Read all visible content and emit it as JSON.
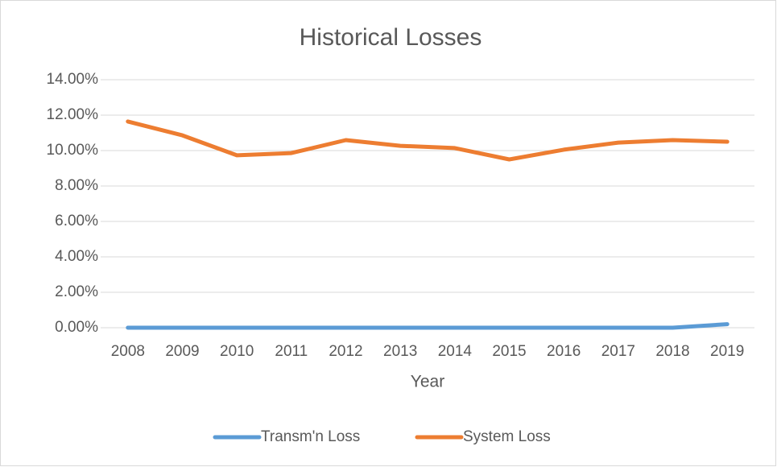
{
  "chart_data": {
    "type": "line",
    "title": "Historical Losses",
    "x_label": "Year",
    "categories": [
      "2008",
      "2009",
      "2010",
      "2011",
      "2012",
      "2013",
      "2014",
      "2015",
      "2016",
      "2017",
      "2018",
      "2019"
    ],
    "series": [
      {
        "name": "Transm'n Loss",
        "color": "#5b9bd5",
        "values": [
          0,
          0,
          0,
          0,
          0,
          0,
          0,
          0,
          0,
          0,
          0,
          0.2
        ]
      },
      {
        "name": "System Loss",
        "color": "#ed7d31",
        "values": [
          11.64,
          10.86,
          9.73,
          9.86,
          10.59,
          10.27,
          10.14,
          9.5,
          10.05,
          10.45,
          10.59,
          10.5
        ]
      }
    ],
    "ylim": [
      0,
      14
    ],
    "yticks": [
      {
        "value": 0,
        "label": "0.00%"
      },
      {
        "value": 2,
        "label": "2.00%"
      },
      {
        "value": 4,
        "label": "4.00%"
      },
      {
        "value": 6,
        "label": "6.00%"
      },
      {
        "value": 8,
        "label": "8.00%"
      },
      {
        "value": 10,
        "label": "10.00%"
      },
      {
        "value": 12,
        "label": "12.00%"
      },
      {
        "value": 14,
        "label": "14.00%"
      }
    ],
    "grid": true,
    "legend": "bottom"
  }
}
